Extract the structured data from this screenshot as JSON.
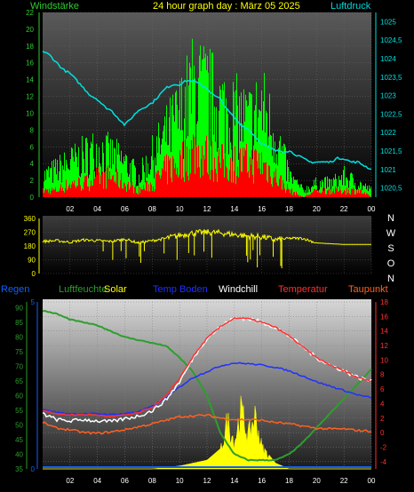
{
  "header": {
    "left_label": "Windstärke",
    "title": "24 hour graph day : März 05 2025",
    "right_label": "Luftdruck"
  },
  "colors": {
    "wind_left": "#2ecc2e",
    "pressure": "#00e0e0",
    "title": "#ffff00",
    "speed_green": "#00ff00",
    "speed_red": "#ff0000",
    "direction": "#ffff00",
    "regen": "#1060ff",
    "luftfeuchte": "#2e9e2e",
    "solar": "#ffff00",
    "temp_boden": "#2030ff",
    "windchill": "#ffffff",
    "temperatur": "#ff3030",
    "taupunkt": "#ff6020"
  },
  "x_ticks": [
    "02",
    "04",
    "06",
    "08",
    "10",
    "12",
    "14",
    "16",
    "18",
    "20",
    "22",
    "00"
  ],
  "panel1": {
    "type": "line",
    "y_left_ticks": [
      "0",
      "2",
      "4",
      "6",
      "8",
      "10",
      "12",
      "14",
      "16",
      "18",
      "20",
      "22"
    ],
    "y_right_ticks": [
      "1020,5",
      "1021",
      "1021,5",
      "1022",
      "1022,5",
      "1023",
      "1023,5",
      "1024",
      "1024,5",
      "1025"
    ],
    "ylim_left": [
      0,
      22
    ],
    "ylim_right": [
      1020.25,
      1025.25
    ],
    "pressure": {
      "x": [
        0,
        0.5,
        1,
        1.5,
        2,
        2.5,
        3,
        3.5,
        4,
        4.5,
        5,
        5.5,
        6,
        6.5,
        7,
        7.5,
        8,
        8.5,
        9,
        9.5,
        10,
        10.5,
        11,
        11.5,
        12,
        12.5,
        13,
        13.5,
        14,
        14.5,
        15,
        15.5,
        16,
        16.5,
        17,
        17.5,
        18,
        18.5,
        19,
        19.5,
        20,
        20.5,
        21,
        21.5,
        22,
        22.5,
        23,
        23.5,
        24
      ],
      "values": [
        1024.2,
        1024.1,
        1023.9,
        1023.7,
        1023.6,
        1023.4,
        1023.2,
        1023.0,
        1022.9,
        1022.7,
        1022.6,
        1022.4,
        1022.2,
        1022.4,
        1022.6,
        1022.7,
        1022.8,
        1023.0,
        1023.2,
        1023.3,
        1023.3,
        1023.4,
        1023.4,
        1023.3,
        1023.2,
        1023.0,
        1022.9,
        1022.6,
        1022.4,
        1022.2,
        1022.1,
        1021.9,
        1021.7,
        1021.6,
        1021.5,
        1021.5,
        1021.5,
        1021.4,
        1021.3,
        1021.2,
        1021.2,
        1021.2,
        1021.2,
        1021.3,
        1021.3,
        1021.2,
        1021.2,
        1021.1,
        1021.0
      ]
    },
    "wind_gust_envelope": {
      "x": [
        0,
        1,
        2,
        3,
        4,
        5,
        6,
        7,
        8,
        9,
        10,
        11,
        12,
        13,
        14,
        15,
        16,
        17,
        18,
        19,
        20,
        21,
        22,
        23,
        24
      ],
      "values": [
        3,
        4,
        5,
        6,
        7,
        6,
        5,
        3,
        6,
        9,
        12,
        16,
        15,
        13,
        12,
        11,
        13,
        9,
        3,
        1,
        2,
        2,
        3,
        2,
        1
      ]
    },
    "wind_avg_envelope": {
      "x": [
        0,
        1,
        2,
        3,
        4,
        5,
        6,
        7,
        8,
        9,
        10,
        11,
        12,
        13,
        14,
        15,
        16,
        17,
        18,
        19,
        20,
        21,
        22,
        23,
        24
      ],
      "values": [
        1,
        1,
        2,
        2,
        3,
        3,
        2,
        1,
        2,
        4,
        5,
        7,
        6,
        5,
        5,
        5,
        5,
        3,
        1,
        0,
        1,
        1,
        1,
        1,
        0
      ]
    }
  },
  "panel2": {
    "type": "line",
    "y_ticks": [
      "360",
      "270",
      "180",
      "90",
      "0"
    ],
    "ylim": [
      0,
      360
    ],
    "compass": [
      "N",
      "W",
      "S",
      "O",
      "N"
    ],
    "direction": {
      "x": [
        0,
        1,
        2,
        3,
        4,
        5,
        6,
        7,
        8,
        9,
        10,
        11,
        12,
        13,
        14,
        15,
        16,
        17,
        18,
        19,
        20,
        21,
        22,
        23,
        24
      ],
      "values": [
        210,
        215,
        205,
        220,
        215,
        210,
        225,
        200,
        215,
        230,
        250,
        265,
        270,
        265,
        255,
        245,
        240,
        220,
        230,
        230,
        200,
        195,
        190,
        190,
        190
      ]
    }
  },
  "panel3": {
    "type": "line",
    "legend": [
      "Regen",
      "Luftfeuchte",
      "Solar",
      "Temp Boden",
      "Windchill",
      "Temperatur",
      "Taupunkt"
    ],
    "y_left_ticks": [
      "35",
      "40",
      "45",
      "50",
      "55",
      "60",
      "65",
      "70",
      "75",
      "80",
      "85",
      "90"
    ],
    "y_left2_ticks": [
      "0",
      "5"
    ],
    "y_right_ticks": [
      "-4",
      "-2",
      "0",
      "2",
      "4",
      "6",
      "8",
      "10",
      "12",
      "14",
      "16",
      "18"
    ],
    "ylim_left": [
      35,
      92
    ],
    "ylim_right": [
      -5,
      18
    ],
    "luftfeuchte": {
      "x": [
        0,
        1,
        2,
        3,
        4,
        5,
        6,
        7,
        8,
        9,
        10,
        11,
        12,
        13,
        14,
        15,
        16,
        17,
        18,
        19,
        20,
        21,
        22,
        23,
        24
      ],
      "values": [
        89,
        88,
        86,
        85,
        84,
        82,
        80,
        79,
        78,
        77,
        73,
        68,
        60,
        47,
        40,
        38,
        38,
        38,
        40,
        44,
        49,
        54,
        59,
        64,
        69
      ]
    },
    "temperatur": {
      "x": [
        0,
        1,
        2,
        3,
        4,
        5,
        6,
        7,
        8,
        9,
        10,
        11,
        12,
        13,
        14,
        15,
        16,
        17,
        18,
        19,
        20,
        21,
        22,
        23,
        24
      ],
      "values": [
        3.1,
        2.6,
        2.4,
        2.5,
        2.4,
        2.2,
        2.4,
        2.7,
        3.5,
        5.0,
        7.5,
        10.5,
        13.0,
        14.6,
        15.8,
        15.7,
        15.2,
        14.5,
        13.3,
        11.8,
        10.3,
        9.3,
        8.5,
        7.6,
        7.1
      ]
    },
    "windchill": {
      "x": [
        0,
        1,
        2,
        3,
        4,
        5,
        6,
        7,
        8,
        9,
        10,
        11,
        12,
        13,
        14,
        15,
        16,
        17,
        18,
        19,
        20,
        21,
        22,
        23,
        24
      ],
      "values": [
        2.6,
        1.8,
        1.6,
        1.8,
        1.6,
        1.5,
        1.9,
        2.3,
        3.0,
        4.5,
        7.0,
        10.3,
        13.0,
        14.6,
        15.8,
        15.7,
        15.2,
        14.5,
        13.3,
        11.8,
        10.3,
        9.3,
        8.5,
        7.6,
        7.1
      ]
    },
    "temp_boden": {
      "x": [
        0,
        1,
        2,
        3,
        4,
        5,
        6,
        7,
        8,
        9,
        10,
        11,
        12,
        13,
        14,
        15,
        16,
        17,
        18,
        19,
        20,
        21,
        22,
        23,
        24
      ],
      "values": [
        3.2,
        2.8,
        2.6,
        2.6,
        2.6,
        2.5,
        2.6,
        2.9,
        3.6,
        4.8,
        6.3,
        7.6,
        8.4,
        9.2,
        9.6,
        9.5,
        9.3,
        9.0,
        8.5,
        7.8,
        7.0,
        6.4,
        5.8,
        5.2,
        4.8
      ]
    },
    "taupunkt": {
      "x": [
        0,
        1,
        2,
        3,
        4,
        5,
        6,
        7,
        8,
        9,
        10,
        11,
        12,
        13,
        14,
        15,
        16,
        17,
        18,
        19,
        20,
        21,
        22,
        23,
        24
      ],
      "values": [
        1.4,
        0.6,
        0.4,
        0.0,
        -0.1,
        0.1,
        0.4,
        0.8,
        1.2,
        1.7,
        2.2,
        2.3,
        2.4,
        2.0,
        1.8,
        1.8,
        1.7,
        1.4,
        1.2,
        0.9,
        0.6,
        0.5,
        0.5,
        0.3,
        0.2
      ]
    },
    "solar": {
      "x": [
        0,
        8,
        9,
        10,
        11,
        12,
        13,
        13.5,
        14,
        14.5,
        15,
        15.5,
        16,
        16.5,
        17,
        18,
        24
      ],
      "values": [
        0,
        0,
        0.5,
        1,
        2,
        3,
        7,
        18,
        10,
        22,
        12,
        20,
        8,
        5,
        2,
        0,
        0
      ]
    },
    "regen": {
      "x": [
        0,
        24
      ],
      "values": [
        0,
        0
      ]
    }
  }
}
